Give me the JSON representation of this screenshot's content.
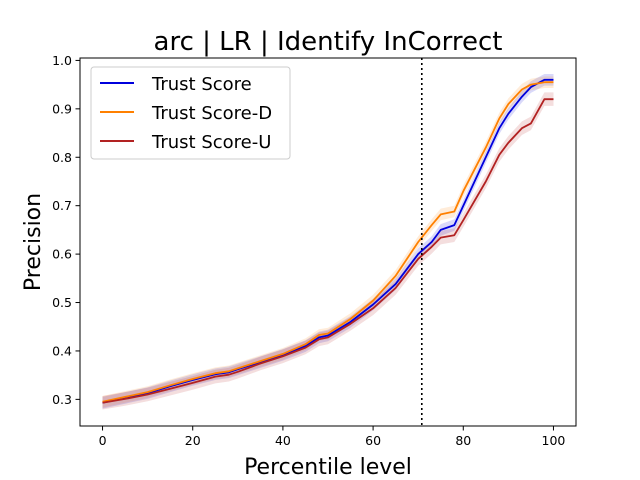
{
  "chart_data": {
    "type": "line",
    "title": "arc | LR | Identify InCorrect",
    "xlabel": "Percentile level",
    "ylabel": "Precision",
    "xlim": [
      -5,
      105
    ],
    "ylim": [
      0.245,
      1.005
    ],
    "xticks": [
      0,
      20,
      40,
      60,
      80,
      100
    ],
    "yticks": [
      0.3,
      0.4,
      0.5,
      0.6,
      0.7,
      0.8,
      0.9,
      1.0
    ],
    "ytick_labels": [
      "0.3",
      "0.4",
      "0.5",
      "0.6",
      "0.7",
      "0.8",
      "0.9",
      "1.0"
    ],
    "vline_x": 70.8,
    "legend_position": "upper-left",
    "grid": false,
    "x": [
      0,
      5,
      10,
      15,
      20,
      25,
      28,
      30,
      35,
      40,
      45,
      48,
      50,
      55,
      60,
      65,
      70,
      73,
      75,
      78,
      80,
      85,
      88,
      90,
      93,
      95,
      98,
      100
    ],
    "series": [
      {
        "name": "Trust Score",
        "color": "#0000dd",
        "band": 0.012,
        "values": [
          0.293,
          0.303,
          0.313,
          0.327,
          0.34,
          0.352,
          0.356,
          0.362,
          0.377,
          0.392,
          0.41,
          0.428,
          0.432,
          0.46,
          0.496,
          0.538,
          0.6,
          0.625,
          0.65,
          0.66,
          0.7,
          0.8,
          0.86,
          0.89,
          0.925,
          0.945,
          0.96,
          0.96
        ]
      },
      {
        "name": "Trust Score-D",
        "color": "#ff8000",
        "band": 0.012,
        "values": [
          0.295,
          0.305,
          0.315,
          0.329,
          0.342,
          0.354,
          0.358,
          0.364,
          0.379,
          0.394,
          0.414,
          0.433,
          0.436,
          0.466,
          0.504,
          0.555,
          0.625,
          0.66,
          0.682,
          0.688,
          0.73,
          0.82,
          0.88,
          0.91,
          0.94,
          0.95,
          0.955,
          0.955
        ]
      },
      {
        "name": "Trust Score-U",
        "color": "#b22222",
        "band": 0.014,
        "values": [
          0.293,
          0.301,
          0.31,
          0.322,
          0.334,
          0.347,
          0.351,
          0.357,
          0.374,
          0.389,
          0.407,
          0.424,
          0.428,
          0.456,
          0.488,
          0.53,
          0.59,
          0.615,
          0.634,
          0.639,
          0.67,
          0.75,
          0.805,
          0.83,
          0.86,
          0.87,
          0.92,
          0.92
        ]
      }
    ]
  }
}
